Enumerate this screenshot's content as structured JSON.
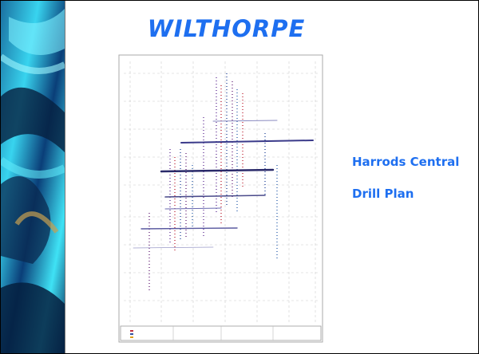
{
  "slide": {
    "title": "WILTHORPE",
    "caption": [
      "Harrods Central",
      "Drill Plan"
    ]
  }
}
